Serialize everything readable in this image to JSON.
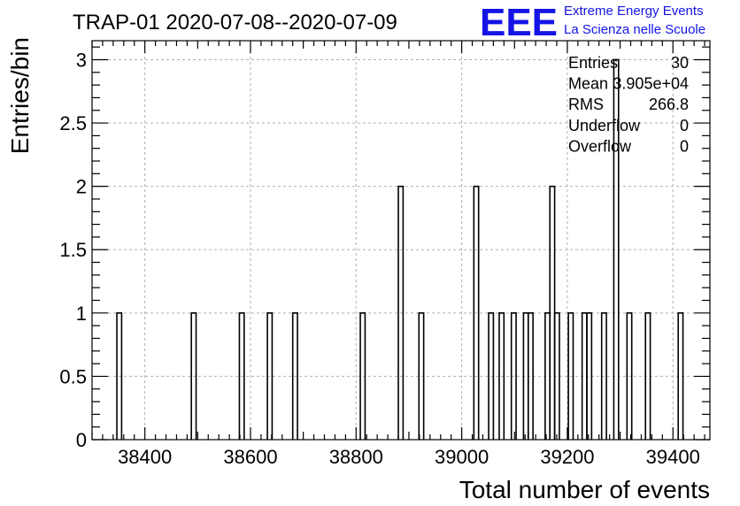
{
  "title": "TRAP-01 2020-07-08--2020-07-09",
  "logo": {
    "mark": "EEE",
    "line1": "Extreme Energy Events",
    "line2": "La Scienza nelle Scuole",
    "color": "#1414e6"
  },
  "stats": {
    "rows": [
      {
        "label": "Entries",
        "value": "30"
      },
      {
        "label": "Mean",
        "value": "3.905e+04"
      },
      {
        "label": "RMS",
        "value": "266.8"
      },
      {
        "label": "Underflow",
        "value": "0"
      },
      {
        "label": "Overflow",
        "value": "0"
      }
    ]
  },
  "chart_data": {
    "type": "bar",
    "histogram": true,
    "xlabel": "Total number of events",
    "ylabel": "Entries/bin",
    "xlim": [
      38300,
      39470
    ],
    "ylim": [
      0,
      3.15
    ],
    "xticks": [
      38400,
      38600,
      38800,
      39000,
      39200,
      39400
    ],
    "xtick_labels": [
      "38400",
      "38600",
      "38800",
      "39000",
      "39200",
      "39400"
    ],
    "yticks": [
      0,
      0.5,
      1,
      1.5,
      2,
      2.5,
      3
    ],
    "ytick_labels": [
      "0",
      "0.5",
      "1",
      "1.5",
      "2",
      "2.5",
      "3"
    ],
    "grid": true,
    "bins": [
      {
        "x0": 38347,
        "x1": 38356,
        "value": 1
      },
      {
        "x0": 38488,
        "x1": 38497,
        "value": 1
      },
      {
        "x0": 38579,
        "x1": 38588,
        "value": 1
      },
      {
        "x0": 38632,
        "x1": 38641,
        "value": 1
      },
      {
        "x0": 38680,
        "x1": 38689,
        "value": 1
      },
      {
        "x0": 38808,
        "x1": 38817,
        "value": 1
      },
      {
        "x0": 38880,
        "x1": 38889,
        "value": 2
      },
      {
        "x0": 38919,
        "x1": 38928,
        "value": 1
      },
      {
        "x0": 39023,
        "x1": 39032,
        "value": 2
      },
      {
        "x0": 39051,
        "x1": 39060,
        "value": 1
      },
      {
        "x0": 39071,
        "x1": 39080,
        "value": 1
      },
      {
        "x0": 39094,
        "x1": 39103,
        "value": 1
      },
      {
        "x0": 39117,
        "x1": 39126,
        "value": 1
      },
      {
        "x0": 39126,
        "x1": 39135,
        "value": 1
      },
      {
        "x0": 39158,
        "x1": 39167,
        "value": 1
      },
      {
        "x0": 39167,
        "x1": 39176,
        "value": 2
      },
      {
        "x0": 39176,
        "x1": 39185,
        "value": 1
      },
      {
        "x0": 39202,
        "x1": 39211,
        "value": 1
      },
      {
        "x0": 39228,
        "x1": 39237,
        "value": 1
      },
      {
        "x0": 39237,
        "x1": 39246,
        "value": 1
      },
      {
        "x0": 39265,
        "x1": 39274,
        "value": 1
      },
      {
        "x0": 39288,
        "x1": 39297,
        "value": 3
      },
      {
        "x0": 39313,
        "x1": 39322,
        "value": 1
      },
      {
        "x0": 39348,
        "x1": 39357,
        "value": 1
      },
      {
        "x0": 39410,
        "x1": 39419,
        "value": 1
      }
    ]
  }
}
